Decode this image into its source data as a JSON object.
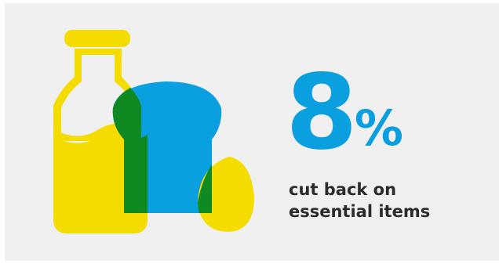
{
  "stat": {
    "number": "8",
    "unit": "%",
    "caption_line1": "cut back on",
    "caption_line2": "essential items"
  },
  "colors": {
    "background": "#f0f0f0",
    "milk": "#f5dc00",
    "bread": "#0a9fde",
    "overlap": "#0f8a22",
    "egg": "#f5dc00",
    "text": "#2b2b2b"
  },
  "illustration": {
    "items": [
      "milk-bottle-icon",
      "bread-loaf-icon",
      "egg-icon"
    ]
  }
}
